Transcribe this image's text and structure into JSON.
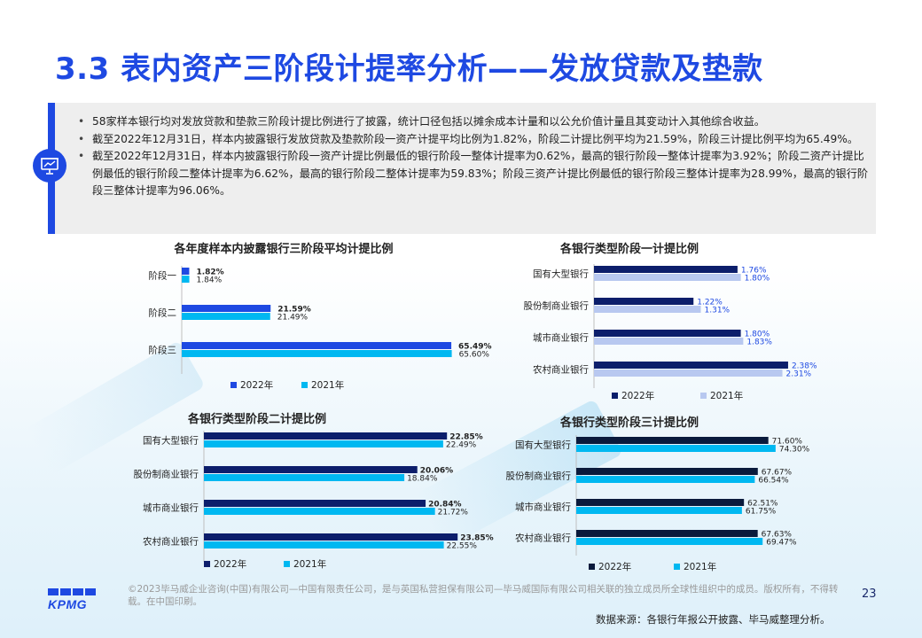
{
  "title": "3.3 表内资产三阶段计提率分析——发放贷款及垫款",
  "summary_items": [
    "58家样本银行均对发放贷款和垫款三阶段计提比例进行了披露，统计口径包括以摊余成本计量和以公允价值计量且其变动计入其他综合收益。",
    "截至2022年12月31日，样本内披露银行发放贷款及垫款阶段一资产计提平均比例为1.82%，阶段二计提比例平均为21.59%，阶段三计提比例平均为65.49%。",
    "截至2022年12月31日，样本内披露银行阶段一资产计提比例最低的银行阶段一整体计提率为0.62%，最高的银行阶段一整体计提率为3.92%；阶段二资产计提比例最低的银行阶段二整体计提率为6.62%，最高的银行阶段二整体计提率为59.83%；阶段三资产计提比例最低的银行阶段三整体计提率为28.99%，最高的银行阶段三整体计提率为96.06%。"
  ],
  "icons": {
    "summary": "presentation-board-icon",
    "logo": "kpmg-logo"
  },
  "colors": {
    "accent": "#1e49e2",
    "panel": "#eeeeee"
  },
  "chart_data": [
    {
      "type": "bar",
      "orientation": "horizontal",
      "title": "各年度样本内披露银行三阶段平均计提比例",
      "categories": [
        "阶段一",
        "阶段二",
        "阶段三"
      ],
      "series": [
        {
          "name": "2022年",
          "values": [
            1.82,
            21.59,
            65.49
          ],
          "labels": [
            "1.82%",
            "21.59%",
            "65.49%"
          ],
          "color": "#1e49e2",
          "bold_labels": true
        },
        {
          "name": "2021年",
          "values": [
            1.84,
            21.49,
            65.6
          ],
          "labels": [
            "1.84%",
            "21.49%",
            "65.60%"
          ],
          "color": "#00b8f1",
          "bold_labels": false
        }
      ],
      "xlim": [
        0,
        70
      ],
      "legend": "bottom"
    },
    {
      "type": "bar",
      "orientation": "horizontal",
      "title": "各银行类型阶段一计提比例",
      "categories": [
        "国有大型银行",
        "股份制商业银行",
        "城市商业银行",
        "农村商业银行"
      ],
      "series": [
        {
          "name": "2022年",
          "values": [
            1.76,
            1.22,
            1.8,
            2.38
          ],
          "labels": [
            "1.76%",
            "1.22%",
            "1.80%",
            "2.38%"
          ],
          "color": "#0c1e6b",
          "bold_labels": false
        },
        {
          "name": "2021年",
          "values": [
            1.8,
            1.31,
            1.83,
            2.31
          ],
          "labels": [
            "1.80%",
            "1.31%",
            "1.83%",
            "2.31%"
          ],
          "color": "#b8c8f0",
          "bold_labels": false
        }
      ],
      "xlim": [
        0,
        2.5
      ],
      "legend": "bottom"
    },
    {
      "type": "bar",
      "orientation": "horizontal",
      "title": "各银行类型阶段二计提比例",
      "categories": [
        "国有大型银行",
        "股份制商业银行",
        "城市商业银行",
        "农村商业银行"
      ],
      "series": [
        {
          "name": "2022年",
          "values": [
            22.85,
            20.06,
            20.84,
            23.85
          ],
          "labels": [
            "22.85%",
            "20.06%",
            "20.84%",
            "23.85%"
          ],
          "color": "#0c1e6b",
          "bold_labels": true
        },
        {
          "name": "2021年",
          "values": [
            22.49,
            18.84,
            21.72,
            22.55
          ],
          "labels": [
            "22.49%",
            "18.84%",
            "21.72%",
            "22.55%"
          ],
          "color": "#00b8f1",
          "bold_labels": false
        }
      ],
      "xlim": [
        0,
        25
      ],
      "legend": "bottom"
    },
    {
      "type": "bar",
      "orientation": "horizontal",
      "title": "各银行类型阶段三计提比例",
      "categories": [
        "国有大型银行",
        "股份制商业银行",
        "城市商业银行",
        "农村商业银行"
      ],
      "series": [
        {
          "name": "2022年",
          "values": [
            71.6,
            67.67,
            62.51,
            67.63
          ],
          "labels": [
            "71.60%",
            "67.67%",
            "62.51%",
            "67.63%"
          ],
          "color": "#0a1a3c",
          "bold_labels": false
        },
        {
          "name": "2021年",
          "values": [
            74.3,
            66.54,
            61.75,
            69.47
          ],
          "labels": [
            "74.30%",
            "66.54%",
            "61.75%",
            "69.47%"
          ],
          "color": "#00b8f1",
          "bold_labels": false
        }
      ],
      "xlim": [
        0,
        76
      ],
      "legend": "bottom"
    }
  ],
  "footer": {
    "logo_text": "KPMG",
    "copyright": "©2023毕马威企业咨询(中国)有限公司—中国有限责任公司，是与英国私营担保有限公司—毕马威国际有限公司相关联的独立成员所全球性组织中的成员。版权所有，不得转载。在中国印刷。",
    "page_number": "23",
    "source": "数据来源：各银行年报公开披露、毕马威整理分析。"
  }
}
